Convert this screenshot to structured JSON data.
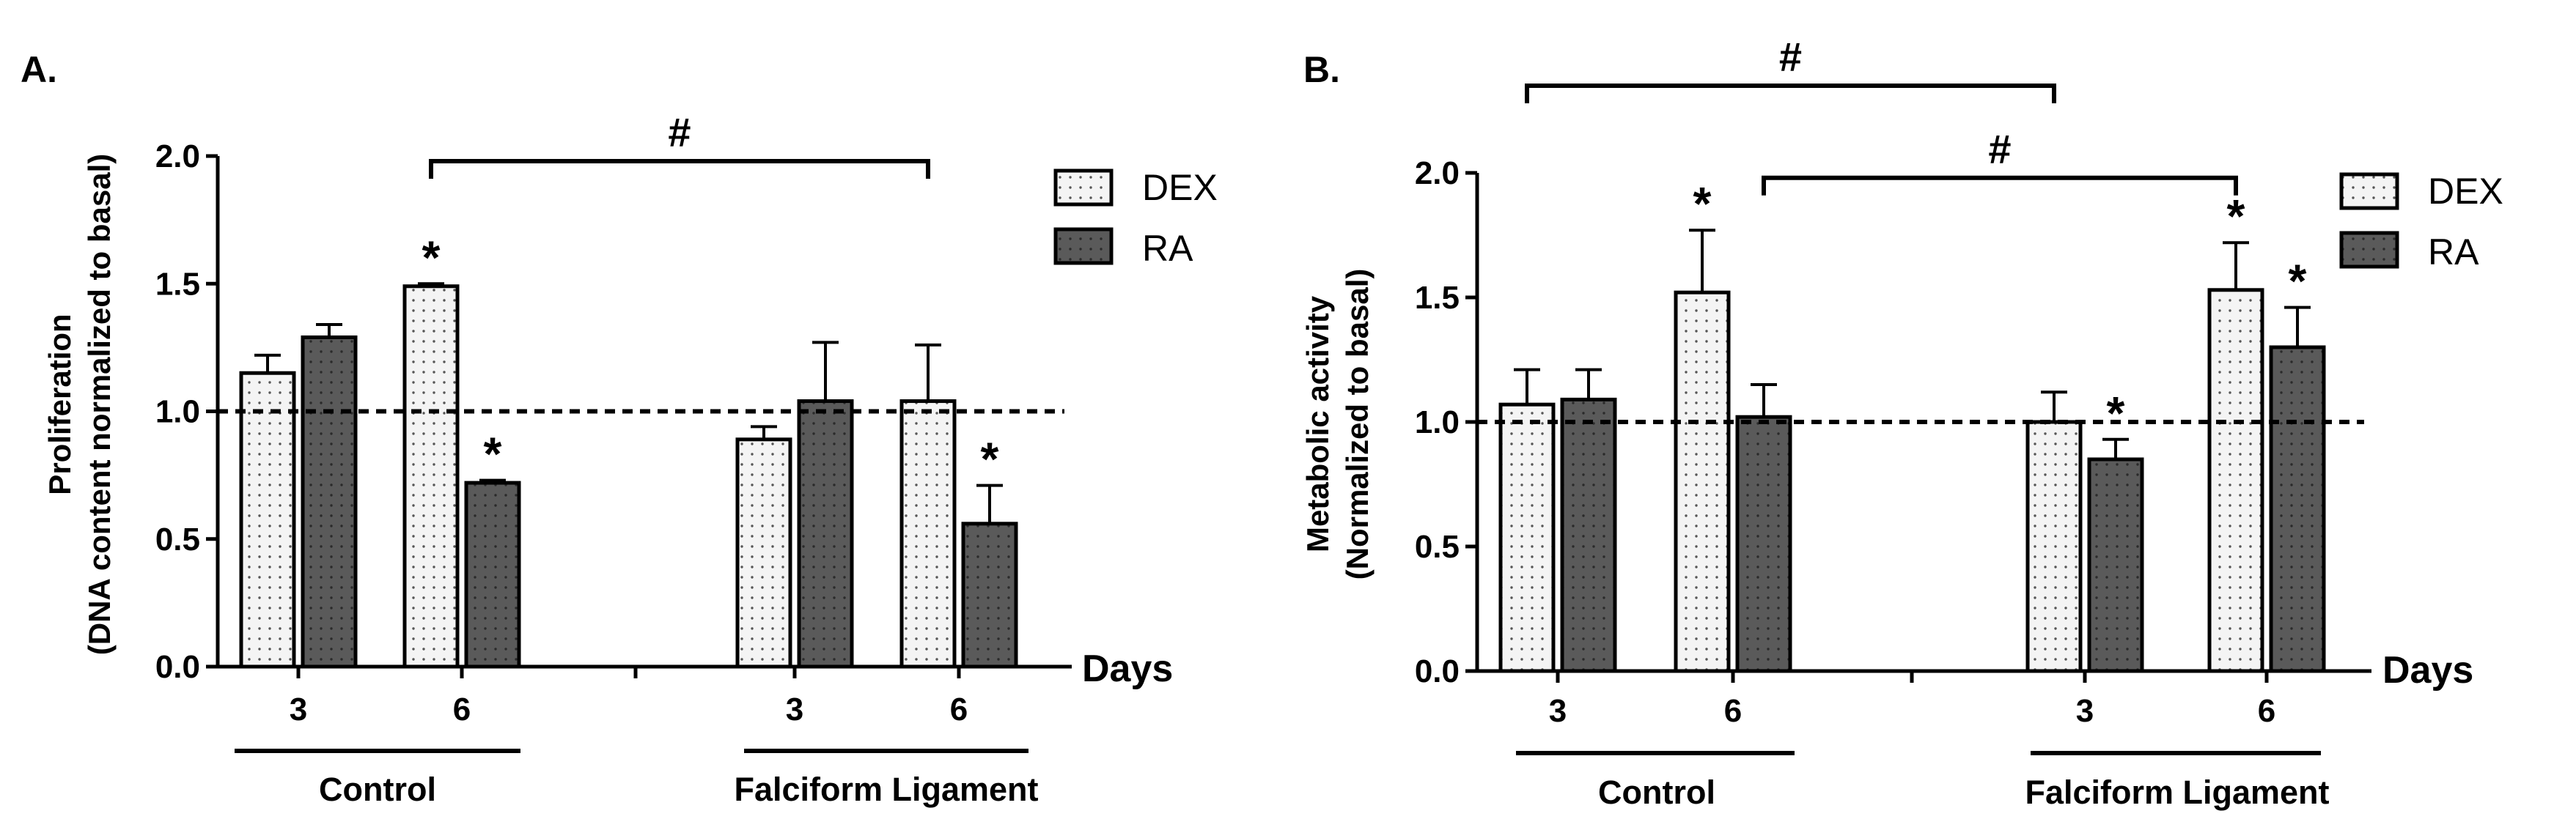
{
  "colors": {
    "dex_fill": "#f4f4f4",
    "dex_dot": "#555555",
    "ra_fill": "#5a5a5a",
    "ra_dot": "#2a2a2a",
    "stroke": "#000000"
  },
  "chart_data": [
    {
      "type": "bar",
      "panel_label": "A.",
      "ylabel_line1": "Proliferation",
      "ylabel_line2": "(DNA content normalized to basal)",
      "xlabel": "Days",
      "ylim": [
        0,
        2.0
      ],
      "yticks": [
        "0.0",
        "0.5",
        "1.0",
        "1.5",
        "2.0"
      ],
      "reference_line": 1.0,
      "groups": [
        {
          "name": "Control",
          "days": [
            {
              "day": "3",
              "DEX": {
                "value": 1.15,
                "error": 0.07
              },
              "RA": {
                "value": 1.29,
                "error": 0.05
              }
            },
            {
              "day": "6",
              "DEX": {
                "value": 1.49,
                "error": 0.01
              },
              "RA": {
                "value": 0.72,
                "error": 0.01
              }
            }
          ]
        },
        {
          "name": "Falciform Ligament",
          "days": [
            {
              "day": "3",
              "DEX": {
                "value": 0.89,
                "error": 0.05
              },
              "RA": {
                "value": 1.04,
                "error": 0.23
              }
            },
            {
              "day": "6",
              "DEX": {
                "value": 1.04,
                "error": 0.22
              },
              "RA": {
                "value": 0.56,
                "error": 0.15
              }
            }
          ]
        }
      ],
      "series": [
        "DEX",
        "RA"
      ],
      "significance_star": "*",
      "stars": [
        {
          "group": 0,
          "day": 1,
          "series": "DEX"
        },
        {
          "group": 0,
          "day": 1,
          "series": "RA"
        },
        {
          "group": 1,
          "day": 1,
          "series": "RA"
        }
      ],
      "hash_symbol": "#",
      "hash_brackets": [
        {
          "from": {
            "group": 0,
            "day": 1,
            "series": "DEX"
          },
          "to": {
            "group": 1,
            "day": 1,
            "series": "DEX"
          },
          "level": 1.98
        }
      ],
      "legend": [
        "DEX",
        "RA"
      ]
    },
    {
      "type": "bar",
      "panel_label": "B.",
      "ylabel_line1": "Metabolic activity",
      "ylabel_line2": "(Normalized to basal)",
      "xlabel": "Days",
      "ylim": [
        0,
        2.0
      ],
      "yticks": [
        "0.0",
        "0.5",
        "1.0",
        "1.5",
        "2.0"
      ],
      "reference_line": 1.0,
      "groups": [
        {
          "name": "Control",
          "days": [
            {
              "day": "3",
              "DEX": {
                "value": 1.07,
                "error": 0.14
              },
              "RA": {
                "value": 1.09,
                "error": 0.12
              }
            },
            {
              "day": "6",
              "DEX": {
                "value": 1.52,
                "error": 0.25
              },
              "RA": {
                "value": 1.02,
                "error": 0.13
              }
            }
          ]
        },
        {
          "name": "Falciform Ligament",
          "days": [
            {
              "day": "3",
              "DEX": {
                "value": 1.0,
                "error": 0.12
              },
              "RA": {
                "value": 0.85,
                "error": 0.08
              }
            },
            {
              "day": "6",
              "DEX": {
                "value": 1.53,
                "error": 0.19
              },
              "RA": {
                "value": 1.3,
                "error": 0.16
              }
            }
          ]
        }
      ],
      "series": [
        "DEX",
        "RA"
      ],
      "significance_star": "*",
      "stars": [
        {
          "group": 0,
          "day": 1,
          "series": "DEX"
        },
        {
          "group": 1,
          "day": 0,
          "series": "RA"
        },
        {
          "group": 1,
          "day": 1,
          "series": "DEX"
        },
        {
          "group": 1,
          "day": 1,
          "series": "RA"
        }
      ],
      "hash_symbol": "#",
      "hash_brackets": [
        {
          "from": {
            "group": 0,
            "day": 0,
            "series": "DEX"
          },
          "to": {
            "group": 1,
            "day": 0,
            "series": "DEX"
          },
          "level": 2.35
        },
        {
          "from": {
            "group": 0,
            "day": 1,
            "series": "RA"
          },
          "to": {
            "group": 1,
            "day": 1,
            "series": "DEX"
          },
          "level": 1.98
        }
      ],
      "legend": [
        "DEX",
        "RA"
      ]
    }
  ]
}
